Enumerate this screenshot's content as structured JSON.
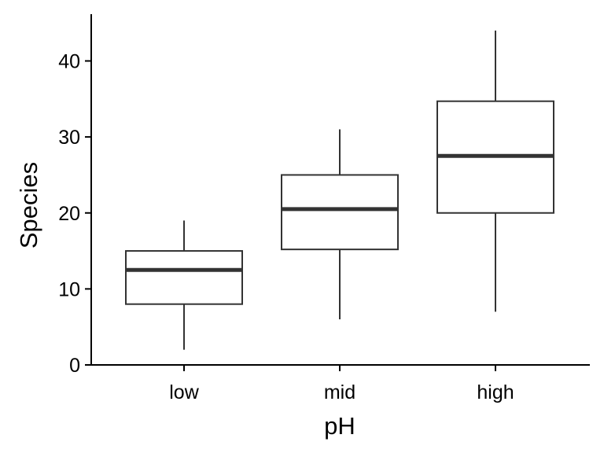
{
  "chart_data": {
    "type": "boxplot",
    "title": "",
    "xlabel": "pH",
    "ylabel": "Species",
    "categories": [
      "low",
      "mid",
      "high"
    ],
    "boxes": [
      {
        "category": "low",
        "whisker_low": 2,
        "q1": 8,
        "median": 12.5,
        "q3": 15,
        "whisker_high": 19
      },
      {
        "category": "mid",
        "whisker_low": 6,
        "q1": 15.2,
        "median": 20.5,
        "q3": 25,
        "whisker_high": 31
      },
      {
        "category": "high",
        "whisker_low": 7,
        "q1": 20,
        "median": 27.5,
        "q3": 34.7,
        "whisker_high": 44
      }
    ],
    "ylim": [
      0,
      45
    ],
    "yticks": [
      0,
      10,
      20,
      30,
      40
    ],
    "ytick_labels": [
      "0",
      "10",
      "20",
      "30",
      "40"
    ],
    "grid": false,
    "legend": false,
    "colors": {
      "box_fill": "#ffffff",
      "box_stroke": "#333333",
      "median": "#333333",
      "axis": "#000000"
    }
  }
}
